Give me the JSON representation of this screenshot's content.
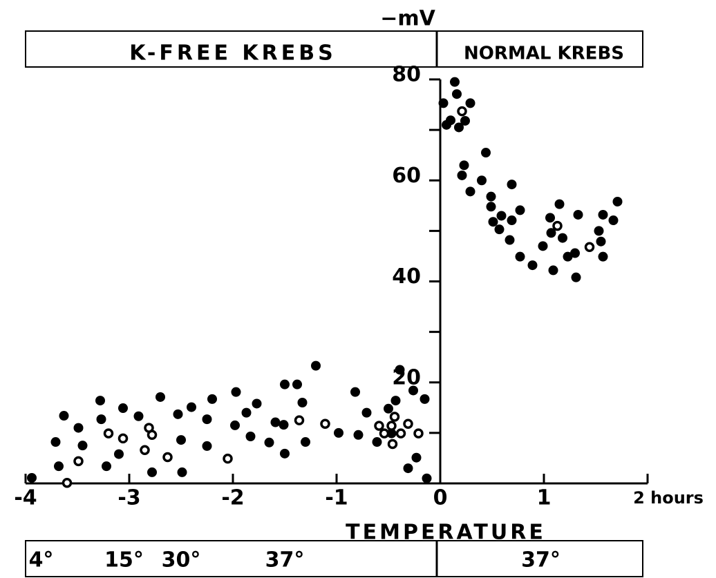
{
  "chart_data": {
    "type": "scatter",
    "y_label": "−mV",
    "conditions": [
      {
        "label": "K-FREE KREBS",
        "xlim": [
          -4,
          0
        ]
      },
      {
        "label": "NORMAL KREBS",
        "xlim": [
          0,
          2
        ]
      }
    ],
    "temperature": {
      "title": "TEMPERATURE",
      "labels": [
        {
          "label": "4°",
          "x": -3.85
        },
        {
          "label": "15°",
          "x": -3.05
        },
        {
          "label": "30°",
          "x": -2.5
        },
        {
          "label": "37°",
          "x": -1.5
        },
        {
          "label": "37°",
          "x": 0.97
        }
      ]
    },
    "xlim": [
      -4,
      2
    ],
    "ylim": [
      0,
      80
    ],
    "xticks": [
      -4,
      -3,
      -2,
      -1,
      0,
      1,
      {
        "value": 2,
        "label": "2 hours"
      }
    ],
    "yticks": [
      20,
      40,
      60,
      80
    ],
    "minor_yticks": [
      10,
      30,
      50,
      70
    ],
    "series": [
      {
        "marker": "filled",
        "color": "#000000",
        "x": [
          0.03,
          0.06,
          0.1,
          0.14,
          0.16,
          0.18,
          0.24,
          0.29,
          0.21,
          0.23,
          0.29,
          0.44,
          0.4,
          0.49,
          0.49,
          0.51,
          0.57,
          0.59,
          0.69,
          0.67,
          0.69,
          0.77,
          0.77,
          0.89,
          0.99,
          1.06,
          1.09,
          1.15,
          1.18,
          1.23,
          1.31,
          1.33,
          1.3,
          1.53,
          1.57,
          1.55,
          1.57,
          1.67,
          1.71,
          1.07,
          -3.94,
          -3.71,
          -3.68,
          -3.63,
          -3.49,
          -3.45,
          -3.28,
          -3.27,
          -3.22,
          -3.1,
          -3.06,
          -2.91,
          -2.78,
          -2.7,
          -2.53,
          -2.5,
          -2.49,
          -2.4,
          -2.25,
          -2.25,
          -2.2,
          -1.98,
          -1.97,
          -1.87,
          -1.83,
          -1.77,
          -1.65,
          -1.59,
          -1.51,
          -1.5,
          -1.5,
          -1.38,
          -1.33,
          -1.3,
          -1.2,
          -0.98,
          -0.82,
          -0.71,
          -0.61,
          -0.47,
          -0.43,
          -0.39,
          -0.31,
          -0.26,
          -0.23,
          -0.15,
          -0.13,
          -0.5,
          -0.79
        ],
        "values": [
          75.3,
          71.0,
          71.9,
          79.5,
          77.1,
          70.5,
          71.8,
          75.3,
          61.0,
          63.0,
          57.8,
          65.5,
          60.0,
          56.8,
          54.8,
          51.8,
          50.3,
          53.0,
          52.1,
          48.2,
          59.2,
          54.1,
          44.9,
          43.2,
          47.0,
          52.6,
          42.2,
          55.3,
          48.6,
          44.9,
          40.8,
          53.2,
          45.6,
          50.0,
          53.2,
          47.9,
          44.9,
          52.1,
          55.8,
          49.6,
          1.1,
          8.2,
          3.4,
          13.4,
          11.0,
          7.5,
          16.4,
          12.7,
          3.4,
          5.8,
          14.9,
          13.3,
          2.2,
          17.1,
          13.7,
          8.6,
          2.2,
          15.1,
          12.7,
          7.4,
          16.7,
          11.5,
          18.1,
          14.0,
          9.3,
          15.8,
          8.1,
          12.1,
          11.6,
          19.6,
          5.9,
          19.6,
          16.0,
          8.2,
          23.3,
          10.0,
          18.1,
          14.0,
          8.2,
          9.9,
          16.4,
          22.5,
          3.0,
          18.4,
          5.1,
          16.7,
          1.0,
          14.8,
          9.6
        ]
      },
      {
        "marker": "open",
        "color": "#000000",
        "x": [
          0.21,
          1.13,
          1.44,
          -3.6,
          -3.49,
          -3.2,
          -3.06,
          -2.85,
          -2.81,
          -2.78,
          -2.63,
          -2.05,
          -1.36,
          -1.11,
          -0.59,
          -0.54,
          -0.47,
          -0.44,
          -0.38,
          -0.31,
          -0.21,
          -0.46
        ],
        "values": [
          73.7,
          51.0,
          46.8,
          0.1,
          4.4,
          9.9,
          8.9,
          6.6,
          11.0,
          9.6,
          5.2,
          4.9,
          12.5,
          11.8,
          11.4,
          9.9,
          11.4,
          13.2,
          9.9,
          11.8,
          9.9,
          7.8
        ]
      }
    ]
  }
}
